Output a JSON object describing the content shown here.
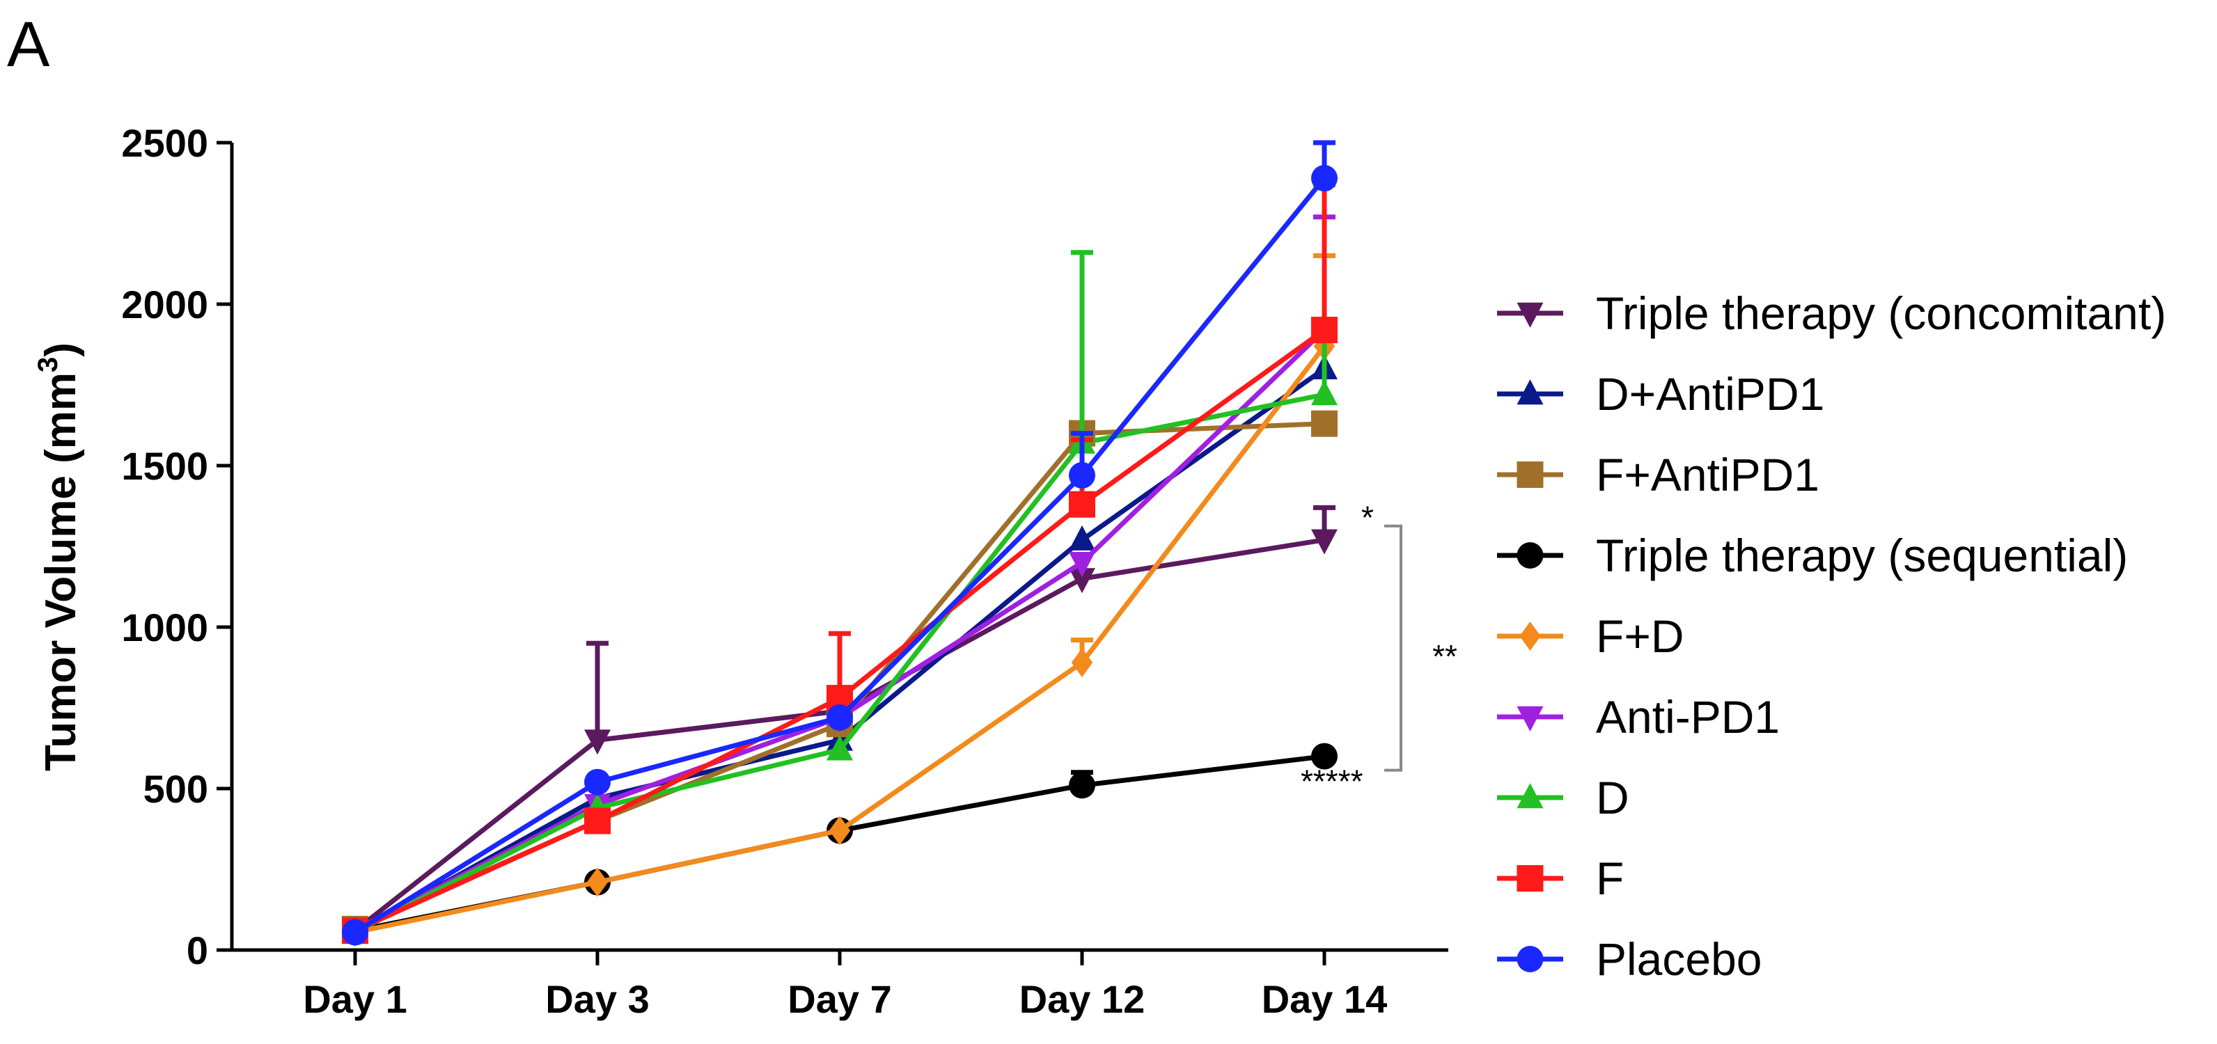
{
  "panel_label": "A",
  "chart_data": {
    "type": "line",
    "title": "",
    "xlabel": "",
    "ylabel": "Tumor Volume (mm",
    "ylabel_sup": "3",
    "ylabel_close": ")",
    "categories": [
      "Day 1",
      "Day 3",
      "Day 7",
      "Day 12",
      "Day 14"
    ],
    "ylim": [
      0,
      2500
    ],
    "yticks": [
      "0",
      "500",
      "1000",
      "1500",
      "2000",
      "2500"
    ],
    "legend_position": "right",
    "series": [
      {
        "name": "Triple therapy (concomitant)",
        "color": "#5b1a5e",
        "marker": "triangle-down",
        "values": [
          60,
          650,
          740,
          1150,
          1270
        ],
        "err": [
          0,
          300,
          0,
          0,
          100
        ]
      },
      {
        "name": "D+AntiPD1",
        "color": "#0a1a8a",
        "marker": "triangle-up",
        "values": [
          55,
          470,
          650,
          1270,
          1800
        ],
        "err": [
          0,
          0,
          0,
          0,
          0
        ]
      },
      {
        "name": "F+AntiPD1",
        "color": "#a0702a",
        "marker": "square",
        "values": [
          65,
          400,
          700,
          1600,
          1630
        ],
        "err": [
          0,
          0,
          0,
          0,
          0
        ]
      },
      {
        "name": "Triple therapy (sequential)",
        "color": "#000000",
        "marker": "circle",
        "values": [
          60,
          210,
          370,
          510,
          600
        ],
        "err": [
          0,
          0,
          0,
          40,
          0
        ]
      },
      {
        "name": "F+D",
        "color": "#f28a1c",
        "marker": "diamond",
        "values": [
          55,
          210,
          370,
          890,
          1870
        ],
        "err": [
          0,
          0,
          0,
          70,
          280
        ]
      },
      {
        "name": "Anti-PD1",
        "color": "#a020e0",
        "marker": "triangle-down",
        "values": [
          60,
          450,
          720,
          1200,
          1920
        ],
        "err": [
          0,
          0,
          0,
          0,
          350
        ]
      },
      {
        "name": "D",
        "color": "#22c022",
        "marker": "triangle-up",
        "values": [
          55,
          440,
          620,
          1570,
          1720
        ],
        "err": [
          0,
          0,
          0,
          590,
          650
        ]
      },
      {
        "name": "F",
        "color": "#ff1a1a",
        "marker": "square",
        "values": [
          60,
          400,
          780,
          1380,
          1920
        ],
        "err": [
          0,
          0,
          200,
          200,
          480
        ]
      },
      {
        "name": "Placebo",
        "color": "#1a28ff",
        "marker": "circle",
        "values": [
          55,
          520,
          720,
          1470,
          2390
        ],
        "err": [
          0,
          0,
          0,
          130,
          110
        ]
      }
    ],
    "annotations": [
      {
        "text": "*",
        "series": "Triple therapy (concomitant)"
      },
      {
        "text": "**",
        "between": [
          "Triple therapy (concomitant)",
          "Triple therapy (sequential)"
        ]
      },
      {
        "text": "*****",
        "series": "Triple therapy (sequential)"
      }
    ]
  }
}
